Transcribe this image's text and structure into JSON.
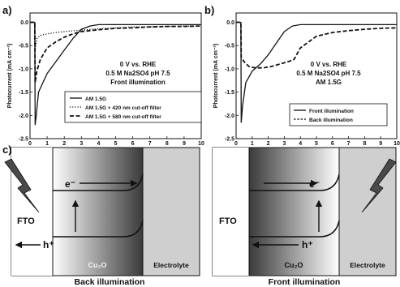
{
  "panels": {
    "a": {
      "label": "a)",
      "annotation": [
        "0 V vs. RHE",
        "0.5 M Na2SO4 pH 7.5",
        "Front illumination"
      ],
      "legend": [
        "AM 1.5G",
        "AM 1.5G + 420 nm cut-off filter",
        "AM 1.5G + 580 nm cut-off filter"
      ]
    },
    "b": {
      "label": "b)",
      "annotation": [
        "0 V vs. RHE",
        "0.5 M Na2SO4 pH 7.5",
        "AM 1.5G"
      ],
      "legend": [
        "Front illumination",
        "Back illumination"
      ]
    },
    "c": {
      "label": "c)",
      "left": {
        "fto": "FTO",
        "electron": "e⁻",
        "hole": "h⁺",
        "oxide": "Cu₂O",
        "electrolyte": "Electrolyte",
        "caption": "Back illumination"
      },
      "right": {
        "fto": "FTO",
        "electron": "e⁻",
        "hole": "h⁺",
        "oxide": "Cu₂O",
        "electrolyte": "Electrolyte",
        "caption": "Front illumination"
      }
    }
  },
  "chart_data": [
    {
      "type": "line",
      "panel": "a",
      "xlabel": "Time (min)",
      "ylabel": "Photocurrent (mA cm⁻²)",
      "xlim": [
        0,
        10
      ],
      "ylim": [
        -2.5,
        0.2
      ],
      "xticks": [
        "0",
        "1",
        "2",
        "3",
        "4",
        "5",
        "6",
        "7",
        "8",
        "9",
        "10"
      ],
      "yticks": [
        "0.0",
        "-0.5",
        "-1.0",
        "-1.5",
        "-2.0",
        "-2.5"
      ],
      "series": [
        {
          "name": "AM 1.5G",
          "style": "solid",
          "x": [
            0,
            0.28,
            0.3,
            0.35,
            0.5,
            1,
            1.5,
            2,
            2.5,
            3,
            3.5,
            4,
            5,
            6,
            7,
            8,
            9,
            10
          ],
          "y": [
            0,
            0,
            -2.2,
            -2.05,
            -1.5,
            -1.1,
            -0.85,
            -0.6,
            -0.35,
            -0.15,
            -0.08,
            -0.05,
            -0.05,
            -0.05,
            -0.05,
            -0.05,
            -0.05,
            -0.05
          ]
        },
        {
          "name": "AM 1.5G + 420 nm cut-off filter",
          "style": "dotted",
          "x": [
            0,
            0.28,
            0.3,
            0.4,
            0.6,
            1,
            1.5,
            2,
            3,
            4,
            5,
            6,
            7,
            8,
            9,
            10
          ],
          "y": [
            0,
            0,
            -0.6,
            -0.35,
            -0.28,
            -0.25,
            -0.22,
            -0.2,
            -0.17,
            -0.14,
            -0.12,
            -0.1,
            -0.1,
            -0.09,
            -0.08,
            -0.08
          ]
        },
        {
          "name": "AM 1.5G + 580 nm cut-off filter",
          "style": "dashed",
          "x": [
            0,
            0.28,
            0.3,
            0.4,
            0.6,
            1,
            1.5,
            2,
            2.5,
            3,
            4,
            5,
            6,
            7,
            8,
            9,
            10
          ],
          "y": [
            0,
            0,
            -1.3,
            -1.05,
            -0.8,
            -0.55,
            -0.42,
            -0.32,
            -0.25,
            -0.2,
            -0.16,
            -0.13,
            -0.12,
            -0.1,
            -0.09,
            -0.09,
            -0.08
          ]
        }
      ]
    },
    {
      "type": "line",
      "panel": "b",
      "xlabel": "Time (min)",
      "ylabel": "Photocurrent (mA cm⁻²)",
      "xlim": [
        0,
        10
      ],
      "ylim": [
        -2.5,
        0.2
      ],
      "xticks": [
        "0",
        "1",
        "2",
        "3",
        "4",
        "5",
        "6",
        "7",
        "8",
        "9",
        "10"
      ],
      "yticks": [
        "0.0",
        "-0.5",
        "-1.0",
        "-1.5",
        "-2.0",
        "-2.5"
      ],
      "series": [
        {
          "name": "Front illumination",
          "style": "solid",
          "x": [
            0,
            0.3,
            0.32,
            0.4,
            0.6,
            1,
            1.5,
            2,
            2.5,
            3,
            3.5,
            4,
            5,
            6,
            7,
            8,
            9,
            10
          ],
          "y": [
            0,
            0,
            -2.15,
            -1.8,
            -1.3,
            -1.05,
            -0.9,
            -0.7,
            -0.45,
            -0.2,
            -0.08,
            -0.05,
            -0.05,
            -0.05,
            -0.05,
            -0.05,
            -0.05,
            -0.05
          ]
        },
        {
          "name": "Back illumination",
          "style": "dashed",
          "x": [
            0,
            0.3,
            0.32,
            0.5,
            0.8,
            1.2,
            1.7,
            2.2,
            2.7,
            3.2,
            3.6,
            4,
            5,
            6,
            7,
            8,
            9,
            10
          ],
          "y": [
            0,
            0,
            -0.75,
            -0.85,
            -0.95,
            -0.98,
            -0.98,
            -0.95,
            -0.9,
            -0.85,
            -0.8,
            -0.55,
            -0.3,
            -0.22,
            -0.18,
            -0.15,
            -0.13,
            -0.12
          ]
        }
      ]
    }
  ]
}
